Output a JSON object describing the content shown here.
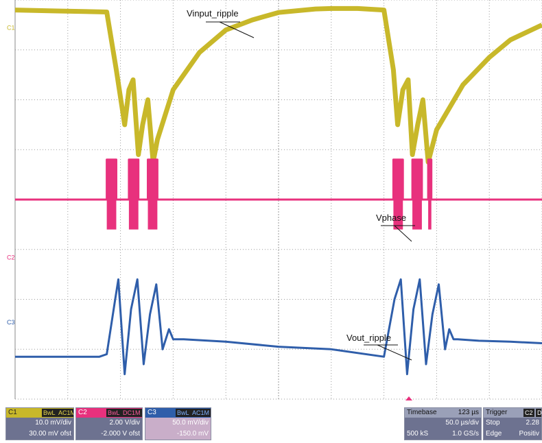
{
  "chart_data": {
    "type": "line",
    "title": "",
    "xlabel": "",
    "ylabel": "",
    "grid": true,
    "x_unit": "µs",
    "xlim": [
      0,
      500
    ],
    "ylim_divisions": [
      -4,
      4
    ],
    "series": [
      {
        "name": "C1",
        "color": "#c8b82a",
        "x": [
          0,
          40,
          87,
          96,
          104,
          108,
          112,
          117,
          121,
          126,
          131,
          135,
          150,
          175,
          200,
          225,
          250,
          285,
          300,
          325,
          350,
          359,
          363,
          368,
          373,
          377,
          382,
          387,
          392,
          400,
          425,
          450,
          470,
          500
        ],
        "y": [
          3.8,
          3.78,
          3.76,
          2.6,
          1.5,
          2.2,
          2.4,
          0.9,
          1.5,
          2.0,
          0.75,
          1.2,
          2.2,
          2.95,
          3.4,
          3.6,
          3.75,
          3.82,
          3.83,
          3.83,
          3.8,
          2.6,
          1.5,
          2.2,
          2.4,
          0.9,
          1.5,
          2.0,
          0.75,
          1.4,
          2.3,
          2.85,
          3.2,
          3.5
        ]
      },
      {
        "name": "C2",
        "color": "#e8317d",
        "x": [
          0,
          87,
          87,
          96,
          96,
          108,
          108,
          117,
          117,
          126,
          126,
          135,
          135,
          359,
          359,
          368,
          368,
          377,
          377,
          386,
          386,
          392,
          392,
          395,
          395,
          500
        ],
        "y": [
          0,
          0,
          0.8,
          0.8,
          0,
          0,
          0.8,
          0.8,
          0,
          0,
          0.8,
          0.8,
          0,
          0,
          0.8,
          0.8,
          0,
          0,
          0.8,
          0.8,
          0,
          0,
          0.8,
          0.8,
          0,
          0
        ]
      },
      {
        "name": "C3",
        "color": "#2f5eaa",
        "x": [
          0,
          80,
          87,
          95,
          98,
          104,
          110,
          116,
          122,
          128,
          134,
          140,
          146,
          150,
          160,
          200,
          250,
          300,
          350,
          360,
          366,
          372,
          378,
          384,
          390,
          396,
          402,
          408,
          412,
          416,
          420,
          440,
          470,
          500
        ],
        "y": [
          -3.15,
          -3.15,
          -3.1,
          -2.0,
          -1.6,
          -3.5,
          -2.2,
          -1.6,
          -3.3,
          -2.3,
          -1.7,
          -3.0,
          -2.6,
          -2.8,
          -2.8,
          -2.85,
          -2.95,
          -3.0,
          -3.15,
          -2.0,
          -1.6,
          -3.5,
          -2.2,
          -1.6,
          -3.3,
          -2.3,
          -1.7,
          -3.0,
          -2.6,
          -2.8,
          -2.8,
          -2.83,
          -2.85,
          -2.88
        ]
      }
    ],
    "annotations": [
      {
        "text": "Vinput_ripple"
      },
      {
        "text": "Vphase"
      },
      {
        "text": "Vout_ripple"
      }
    ]
  },
  "channel_labels": {
    "c1": "C1",
    "c2": "C2",
    "c3": "C3"
  },
  "panels": {
    "c1": {
      "name": "C1",
      "badge1": "BwL",
      "badge2": "AC1M",
      "scale": "10.0 mV/div",
      "offset": "30.00 mV ofst"
    },
    "c2": {
      "name": "C2",
      "badge1": "BwL",
      "badge2": "DC1M",
      "scale": "2.00 V/div",
      "offset": "-2.000 V ofst"
    },
    "c3": {
      "name": "C3",
      "badge1": "BwL",
      "badge2": "AC1M",
      "scale": "50.0 mV/div",
      "offset": "-150.0 mV"
    },
    "timebase": {
      "label": "Timebase",
      "value": "123 µs",
      "scale": "50.0 µs/div",
      "samples": "500 kS",
      "rate": "1.0 GS/s"
    },
    "trigger": {
      "label": "Trigger",
      "badge": "C2",
      "badge2": "D",
      "mode": "Stop",
      "level": "2.28",
      "type": "Edge",
      "slope": "Positiv"
    }
  },
  "colors": {
    "c1": "#c8b82a",
    "c2": "#e8317d",
    "c3": "#2f5eaa",
    "panel_bg": "#6d7290"
  }
}
